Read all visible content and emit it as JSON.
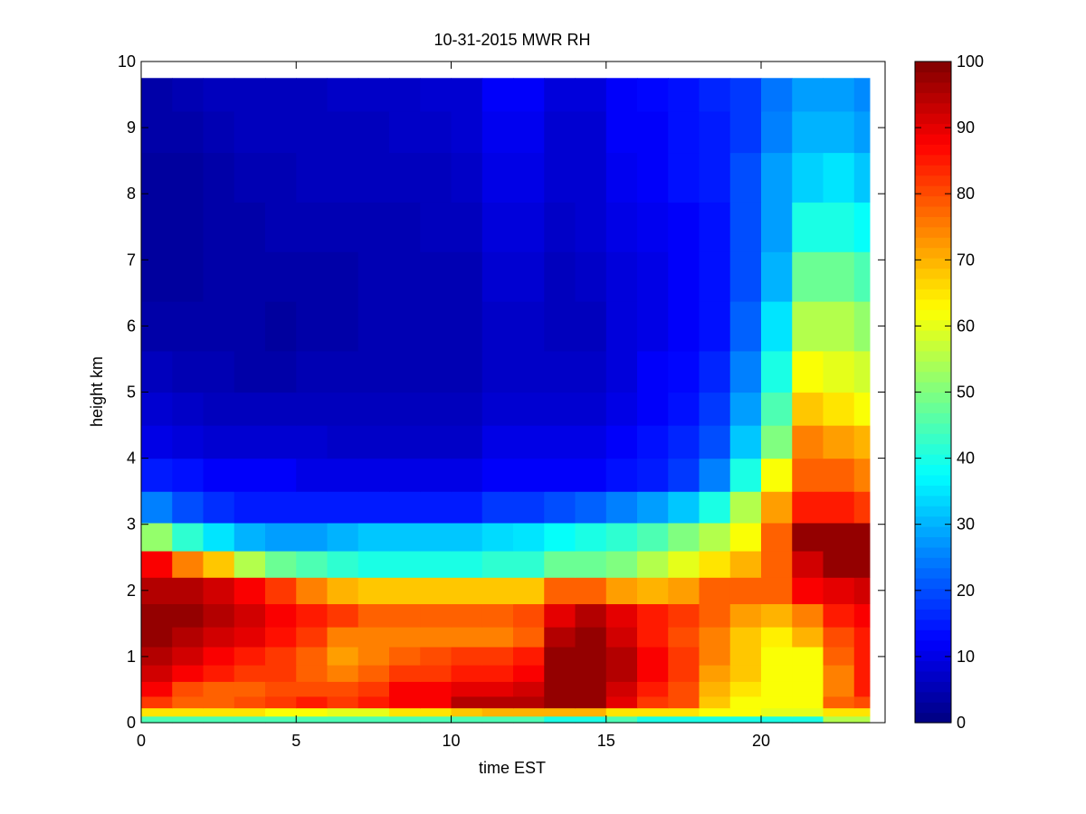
{
  "chart_data": {
    "type": "heatmap",
    "title": "10-31-2015 MWR RH",
    "xlabel": "time EST",
    "ylabel": "height km",
    "xlim": [
      0,
      24
    ],
    "ylim": [
      0,
      10
    ],
    "xticks": [
      0,
      5,
      10,
      15,
      20
    ],
    "yticks": [
      0,
      1,
      2,
      3,
      4,
      5,
      6,
      7,
      8,
      9,
      10
    ],
    "colorbar": {
      "min": 0,
      "max": 100,
      "ticks": [
        0,
        10,
        20,
        30,
        40,
        50,
        60,
        70,
        80,
        90,
        100
      ],
      "colormap": "jet"
    },
    "time_columns": [
      0,
      1,
      2,
      3,
      4,
      5,
      6,
      7,
      8,
      9,
      10,
      11,
      12,
      13,
      14,
      15,
      16,
      17,
      18,
      19,
      20,
      21,
      22,
      23
    ],
    "height_rows_km": [
      0.05,
      0.15,
      0.3,
      0.5,
      0.75,
      1.0,
      1.3,
      1.6,
      2.0,
      2.4,
      2.8,
      3.25,
      3.75,
      4.25,
      4.75,
      5.25,
      6.0,
      6.75,
      7.5,
      8.25,
      9.0,
      9.5
    ],
    "rh_percent": [
      [
        45,
        45,
        45,
        45,
        45,
        45,
        45,
        45,
        45,
        45,
        45,
        45,
        45,
        40,
        40,
        45,
        40,
        40,
        40,
        40,
        40,
        40,
        55,
        55
      ],
      [
        65,
        65,
        65,
        65,
        62,
        62,
        60,
        60,
        65,
        65,
        68,
        70,
        70,
        70,
        70,
        65,
        65,
        65,
        62,
        62,
        60,
        60,
        65,
        65
      ],
      [
        82,
        78,
        78,
        80,
        82,
        85,
        82,
        85,
        88,
        88,
        95,
        95,
        95,
        98,
        98,
        90,
        82,
        80,
        68,
        62,
        62,
        62,
        78,
        80
      ],
      [
        88,
        80,
        78,
        78,
        80,
        80,
        80,
        82,
        88,
        88,
        90,
        90,
        92,
        98,
        98,
        92,
        85,
        80,
        70,
        65,
        62,
        62,
        75,
        85
      ],
      [
        92,
        88,
        85,
        82,
        82,
        78,
        75,
        78,
        82,
        82,
        85,
        85,
        88,
        98,
        98,
        95,
        88,
        82,
        72,
        68,
        62,
        62,
        75,
        85
      ],
      [
        95,
        92,
        88,
        85,
        82,
        78,
        72,
        75,
        78,
        80,
        82,
        82,
        85,
        98,
        98,
        95,
        88,
        82,
        75,
        68,
        62,
        62,
        78,
        85
      ],
      [
        98,
        95,
        92,
        90,
        86,
        82,
        75,
        75,
        75,
        75,
        75,
        75,
        78,
        95,
        98,
        92,
        85,
        80,
        75,
        68,
        64,
        70,
        80,
        85
      ],
      [
        98,
        98,
        95,
        92,
        88,
        85,
        82,
        78,
        78,
        78,
        78,
        78,
        80,
        90,
        95,
        90,
        85,
        82,
        78,
        72,
        70,
        75,
        85,
        88
      ],
      [
        95,
        95,
        92,
        88,
        82,
        75,
        70,
        68,
        68,
        68,
        68,
        68,
        68,
        78,
        78,
        72,
        70,
        72,
        78,
        78,
        78,
        88,
        90,
        92
      ],
      [
        88,
        75,
        68,
        55,
        48,
        45,
        42,
        40,
        40,
        40,
        40,
        42,
        42,
        48,
        48,
        50,
        55,
        60,
        65,
        70,
        78,
        92,
        98,
        98
      ],
      [
        52,
        42,
        35,
        30,
        28,
        28,
        30,
        32,
        32,
        32,
        32,
        34,
        35,
        38,
        40,
        42,
        45,
        50,
        55,
        62,
        78,
        98,
        98,
        98
      ],
      [
        25,
        20,
        17,
        15,
        15,
        15,
        15,
        15,
        15,
        15,
        15,
        18,
        18,
        20,
        22,
        25,
        28,
        32,
        40,
        55,
        72,
        85,
        85,
        82
      ],
      [
        15,
        14,
        12,
        12,
        12,
        10,
        10,
        10,
        10,
        10,
        10,
        12,
        12,
        12,
        12,
        14,
        15,
        18,
        25,
        40,
        62,
        78,
        78,
        75
      ],
      [
        10,
        9,
        8,
        8,
        8,
        8,
        7,
        7,
        7,
        7,
        7,
        10,
        10,
        10,
        10,
        12,
        14,
        16,
        20,
        32,
        50,
        75,
        72,
        70
      ],
      [
        8,
        7,
        6,
        6,
        6,
        6,
        6,
        6,
        6,
        6,
        6,
        8,
        8,
        8,
        8,
        10,
        12,
        14,
        18,
        28,
        45,
        68,
        65,
        62
      ],
      [
        6,
        5,
        5,
        4,
        4,
        5,
        5,
        5,
        5,
        5,
        5,
        7,
        7,
        7,
        7,
        9,
        12,
        13,
        16,
        25,
        40,
        62,
        60,
        58
      ],
      [
        4,
        4,
        4,
        4,
        3,
        4,
        4,
        5,
        5,
        5,
        5,
        7,
        7,
        6,
        6,
        9,
        10,
        12,
        14,
        22,
        35,
        55,
        55,
        52
      ],
      [
        3,
        3,
        4,
        4,
        4,
        4,
        4,
        5,
        5,
        5,
        5,
        8,
        8,
        6,
        7,
        9,
        10,
        12,
        14,
        20,
        30,
        48,
        48,
        45
      ],
      [
        3,
        3,
        4,
        4,
        5,
        5,
        5,
        5,
        5,
        6,
        6,
        9,
        9,
        7,
        8,
        10,
        11,
        12,
        14,
        20,
        28,
        40,
        40,
        38
      ],
      [
        3,
        3,
        4,
        5,
        5,
        6,
        6,
        6,
        6,
        6,
        7,
        10,
        10,
        8,
        8,
        11,
        12,
        14,
        15,
        20,
        28,
        33,
        35,
        32
      ],
      [
        4,
        4,
        5,
        6,
        6,
        6,
        6,
        6,
        7,
        7,
        8,
        11,
        11,
        8,
        8,
        12,
        12,
        14,
        15,
        18,
        25,
        30,
        30,
        28
      ],
      [
        4,
        5,
        6,
        6,
        6,
        6,
        7,
        7,
        7,
        8,
        8,
        12,
        12,
        9,
        9,
        12,
        13,
        14,
        16,
        18,
        24,
        28,
        28,
        26
      ]
    ]
  }
}
